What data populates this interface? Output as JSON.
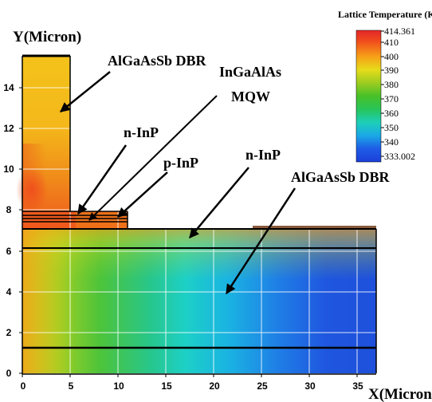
{
  "colorbar": {
    "title": "Lattice Temperature (K)",
    "ticks": [
      "414.361",
      "410",
      "400",
      "390",
      "380",
      "370",
      "360",
      "350",
      "340",
      "333.002"
    ],
    "colors": [
      "#e3262a",
      "#f04a1c",
      "#f7a018",
      "#e6dc1a",
      "#9ccc20",
      "#48c028",
      "#28c45a",
      "#1ecfb8",
      "#1aa8e6",
      "#1f5ce6",
      "#1b3fd8"
    ]
  },
  "axes": {
    "y_label": "Y(Micron)",
    "x_label": "X(Micron)",
    "x_ticks": [
      "0",
      "5",
      "10",
      "15",
      "20",
      "25",
      "30",
      "35"
    ],
    "y_ticks": [
      "0",
      "2",
      "4",
      "6",
      "8",
      "10",
      "12",
      "14"
    ]
  },
  "annotations": {
    "top_dbr": "AlGaAsSb DBR",
    "mqw_line1": "InGaAlAs",
    "mqw_line2": "MQW",
    "n_inp_upper": "n-InP",
    "p_inp": "p-InP",
    "n_inp_lower": "n-InP",
    "bottom_dbr": "AlGaAsSb DBR"
  }
}
